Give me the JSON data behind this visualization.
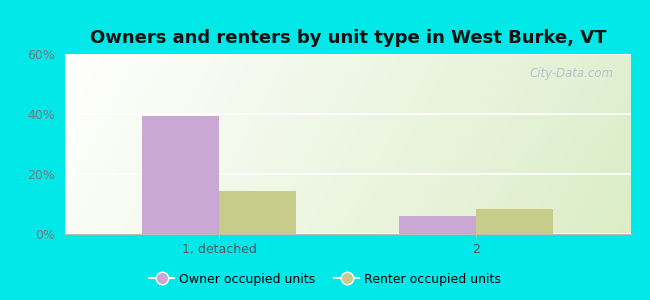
{
  "title": "Owners and renters by unit type in West Burke, VT",
  "categories": [
    "1, detached",
    "2"
  ],
  "owner_values": [
    39.4,
    6.1
  ],
  "renter_values": [
    14.3,
    8.2
  ],
  "owner_color": "#c9a8d4",
  "renter_color": "#c8cc8a",
  "background_outer": "#00e8e8",
  "ylim": [
    0,
    60
  ],
  "yticks": [
    0,
    20,
    40,
    60
  ],
  "ytick_labels": [
    "0%",
    "20%",
    "40%",
    "60%"
  ],
  "bar_width": 0.3,
  "legend_owner": "Owner occupied units",
  "legend_renter": "Renter occupied units",
  "watermark": "City-Data.com",
  "title_fontsize": 13,
  "tick_fontsize": 9,
  "legend_fontsize": 9
}
